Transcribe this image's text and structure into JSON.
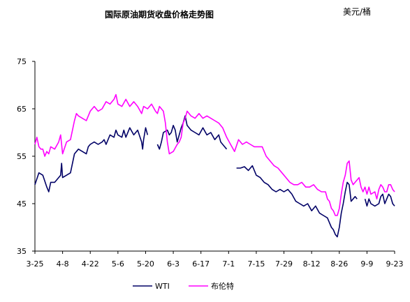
{
  "chart_data": {
    "type": "line",
    "title": "国际原油期货收盘价格走势图",
    "unit_label": "美元/桶",
    "ylim": [
      35,
      75
    ],
    "y_ticks": [
      35,
      45,
      55,
      65,
      75
    ],
    "x_range": [
      0,
      182
    ],
    "x_ticks": [
      {
        "label": "3-25",
        "x": 0
      },
      {
        "label": "4-8",
        "x": 14
      },
      {
        "label": "4-22",
        "x": 28
      },
      {
        "label": "5-6",
        "x": 42
      },
      {
        "label": "5-20",
        "x": 56
      },
      {
        "label": "6-3",
        "x": 70
      },
      {
        "label": "6-17",
        "x": 84
      },
      {
        "label": "7-1",
        "x": 98
      },
      {
        "label": "7-15",
        "x": 112
      },
      {
        "label": "7-29",
        "x": 126
      },
      {
        "label": "8-12",
        "x": 140
      },
      {
        "label": "8-26",
        "x": 154
      },
      {
        "label": "9-9",
        "x": 168
      },
      {
        "label": "9-23",
        "x": 182
      }
    ],
    "grid": false,
    "legend_position": "bottom",
    "series": [
      {
        "name": "WTI",
        "color": "#000066",
        "segments": [
          [
            [
              0,
              49.0
            ],
            [
              2,
              51.5
            ],
            [
              4,
              51.0
            ],
            [
              6,
              48.5
            ],
            [
              7,
              47.5
            ],
            [
              8,
              49.5
            ],
            [
              10,
              49.5
            ],
            [
              12,
              50.5
            ],
            [
              13,
              51.0
            ],
            [
              13.5,
              53.5
            ],
            [
              14,
              50.5
            ],
            [
              16,
              51.0
            ],
            [
              18,
              51.5
            ],
            [
              20,
              55.5
            ],
            [
              22,
              56.5
            ],
            [
              24,
              56.0
            ],
            [
              26,
              55.5
            ],
            [
              27,
              57.0
            ],
            [
              28,
              57.5
            ],
            [
              30,
              58.0
            ],
            [
              32,
              57.5
            ],
            [
              34,
              58.0
            ],
            [
              35,
              58.5
            ],
            [
              36,
              57.5
            ],
            [
              38,
              59.5
            ],
            [
              40,
              59.0
            ],
            [
              41,
              60.5
            ],
            [
              42,
              59.5
            ],
            [
              44,
              59.0
            ],
            [
              45,
              60.5
            ],
            [
              46,
              59.0
            ],
            [
              48,
              61.0
            ],
            [
              50,
              59.5
            ],
            [
              52,
              60.5
            ],
            [
              54,
              58.0
            ],
            [
              54.5,
              56.5
            ],
            [
              55,
              58.5
            ],
            [
              56,
              61.0
            ],
            [
              57,
              59.5
            ]
          ],
          [
            [
              62,
              57.5
            ],
            [
              63,
              56.5
            ],
            [
              64,
              58.0
            ],
            [
              65,
              60.0
            ],
            [
              67,
              60.5
            ],
            [
              68,
              59.5
            ],
            [
              69,
              60.0
            ],
            [
              70,
              61.5
            ],
            [
              71,
              60.5
            ],
            [
              72,
              58.0
            ],
            [
              73,
              59.5
            ],
            [
              74,
              61.0
            ],
            [
              75,
              62.0
            ],
            [
              76,
              63.5
            ],
            [
              77,
              61.5
            ],
            [
              79,
              60.5
            ],
            [
              81,
              60.0
            ],
            [
              83,
              59.5
            ],
            [
              85,
              61.0
            ],
            [
              87,
              59.5
            ],
            [
              89,
              60.0
            ],
            [
              91,
              58.5
            ],
            [
              93,
              59.5
            ],
            [
              94,
              58.0
            ],
            [
              96,
              57.0
            ],
            [
              97,
              56.5
            ]
          ],
          [
            [
              102,
              52.5
            ],
            [
              104,
              52.5
            ],
            [
              106,
              52.8
            ],
            [
              108,
              52.0
            ],
            [
              110,
              53.0
            ],
            [
              112,
              51.0
            ],
            [
              114,
              50.5
            ],
            [
              116,
              49.5
            ],
            [
              118,
              49.0
            ],
            [
              120,
              48.0
            ],
            [
              122,
              47.5
            ],
            [
              124,
              48.0
            ],
            [
              126,
              47.5
            ],
            [
              128,
              48.0
            ],
            [
              130,
              47.0
            ],
            [
              132,
              45.5
            ],
            [
              134,
              45.0
            ],
            [
              136,
              44.5
            ],
            [
              138,
              45.0
            ],
            [
              140,
              43.5
            ],
            [
              142,
              44.5
            ],
            [
              144,
              43.0
            ],
            [
              146,
              42.5
            ],
            [
              148,
              42.0
            ],
            [
              149,
              41.0
            ],
            [
              150,
              40.0
            ],
            [
              151,
              39.5
            ],
            [
              152,
              38.5
            ],
            [
              153,
              38.0
            ],
            [
              154,
              40.0
            ],
            [
              155,
              43.0
            ],
            [
              156,
              45.0
            ],
            [
              157,
              47.5
            ],
            [
              158,
              49.5
            ],
            [
              159,
              49.0
            ],
            [
              160,
              45.5
            ],
            [
              161,
              46.0
            ],
            [
              162,
              46.5
            ],
            [
              163,
              46.0
            ]
          ],
          [
            [
              167,
              46.0
            ],
            [
              168,
              44.5
            ],
            [
              169,
              46.0
            ],
            [
              170,
              45.0
            ],
            [
              172,
              44.5
            ],
            [
              174,
              45.0
            ],
            [
              175,
              46.5
            ],
            [
              176,
              47.0
            ],
            [
              177,
              45.0
            ],
            [
              178,
              46.0
            ],
            [
              179,
              47.0
            ],
            [
              180,
              46.5
            ],
            [
              181,
              45.0
            ],
            [
              182,
              44.5
            ]
          ]
        ]
      },
      {
        "name": "布伦特",
        "color": "#ff00ff",
        "segments": [
          [
            [
              0,
              57.5
            ],
            [
              1,
              59.0
            ],
            [
              2,
              57.0
            ],
            [
              3,
              56.5
            ],
            [
              4,
              56.5
            ],
            [
              5,
              55.0
            ],
            [
              6,
              56.0
            ],
            [
              7,
              55.5
            ],
            [
              8,
              57.0
            ],
            [
              10,
              56.5
            ],
            [
              12,
              58.0
            ],
            [
              13,
              59.5
            ],
            [
              14,
              55.5
            ],
            [
              16,
              58.0
            ],
            [
              18,
              58.5
            ],
            [
              20,
              62.5
            ],
            [
              21,
              64.0
            ],
            [
              22,
              63.5
            ],
            [
              24,
              63.0
            ],
            [
              26,
              62.5
            ],
            [
              27,
              63.5
            ],
            [
              28,
              64.5
            ],
            [
              30,
              65.5
            ],
            [
              32,
              64.5
            ],
            [
              34,
              65.0
            ],
            [
              36,
              66.5
            ],
            [
              38,
              66.0
            ],
            [
              40,
              67.0
            ],
            [
              41,
              68.0
            ],
            [
              42,
              66.0
            ],
            [
              44,
              65.5
            ],
            [
              46,
              67.0
            ],
            [
              48,
              65.5
            ],
            [
              50,
              66.5
            ],
            [
              52,
              65.5
            ],
            [
              54,
              64.0
            ],
            [
              55,
              65.5
            ],
            [
              57,
              65.0
            ],
            [
              59,
              66.0
            ],
            [
              61,
              64.5
            ],
            [
              62,
              64.0
            ],
            [
              63,
              65.5
            ],
            [
              65,
              64.5
            ],
            [
              66,
              62.0
            ],
            [
              67,
              58.0
            ],
            [
              68,
              55.5
            ],
            [
              70,
              56.0
            ],
            [
              72,
              57.5
            ],
            [
              73,
              58.0
            ],
            [
              74,
              59.0
            ],
            [
              75,
              62.0
            ],
            [
              76,
              63.0
            ],
            [
              77,
              64.5
            ],
            [
              79,
              63.5
            ],
            [
              81,
              63.0
            ],
            [
              83,
              64.0
            ],
            [
              85,
              63.0
            ],
            [
              87,
              63.5
            ],
            [
              89,
              63.0
            ],
            [
              91,
              62.5
            ],
            [
              93,
              62.0
            ],
            [
              95,
              61.0
            ],
            [
              97,
              59.0
            ],
            [
              99,
              57.5
            ],
            [
              101,
              56.0
            ],
            [
              103,
              58.5
            ],
            [
              105,
              57.5
            ],
            [
              107,
              58.0
            ],
            [
              109,
              57.5
            ],
            [
              111,
              57.0
            ],
            [
              113,
              57.0
            ],
            [
              115,
              57.0
            ],
            [
              117,
              55.0
            ],
            [
              119,
              54.0
            ],
            [
              121,
              53.0
            ],
            [
              123,
              52.5
            ],
            [
              125,
              51.5
            ],
            [
              127,
              50.5
            ],
            [
              129,
              49.5
            ],
            [
              131,
              49.0
            ],
            [
              133,
              49.0
            ],
            [
              135,
              49.5
            ],
            [
              137,
              48.5
            ],
            [
              139,
              48.5
            ],
            [
              141,
              49.0
            ],
            [
              143,
              48.0
            ],
            [
              145,
              47.5
            ],
            [
              147,
              47.5
            ],
            [
              148,
              46.0
            ],
            [
              149,
              45.5
            ],
            [
              150,
              44.0
            ],
            [
              151,
              43.5
            ],
            [
              152,
              42.5
            ],
            [
              153,
              42.5
            ],
            [
              154,
              44.0
            ],
            [
              155,
              47.0
            ],
            [
              156,
              49.5
            ],
            [
              157,
              51.0
            ],
            [
              158,
              53.5
            ],
            [
              159,
              54.0
            ],
            [
              160,
              50.0
            ],
            [
              161,
              49.0
            ],
            [
              162,
              49.5
            ],
            [
              164,
              50.5
            ],
            [
              165,
              48.5
            ],
            [
              166,
              47.5
            ],
            [
              167,
              48.5
            ],
            [
              168,
              47.0
            ],
            [
              169,
              48.5
            ],
            [
              170,
              47.0
            ],
            [
              172,
              47.5
            ],
            [
              173,
              46.0
            ],
            [
              174,
              48.0
            ],
            [
              175,
              49.0
            ],
            [
              176,
              48.5
            ],
            [
              177,
              47.5
            ],
            [
              178,
              47.5
            ],
            [
              179,
              49.0
            ],
            [
              180,
              49.0
            ],
            [
              181,
              48.0
            ],
            [
              182,
              47.5
            ]
          ]
        ]
      }
    ]
  }
}
